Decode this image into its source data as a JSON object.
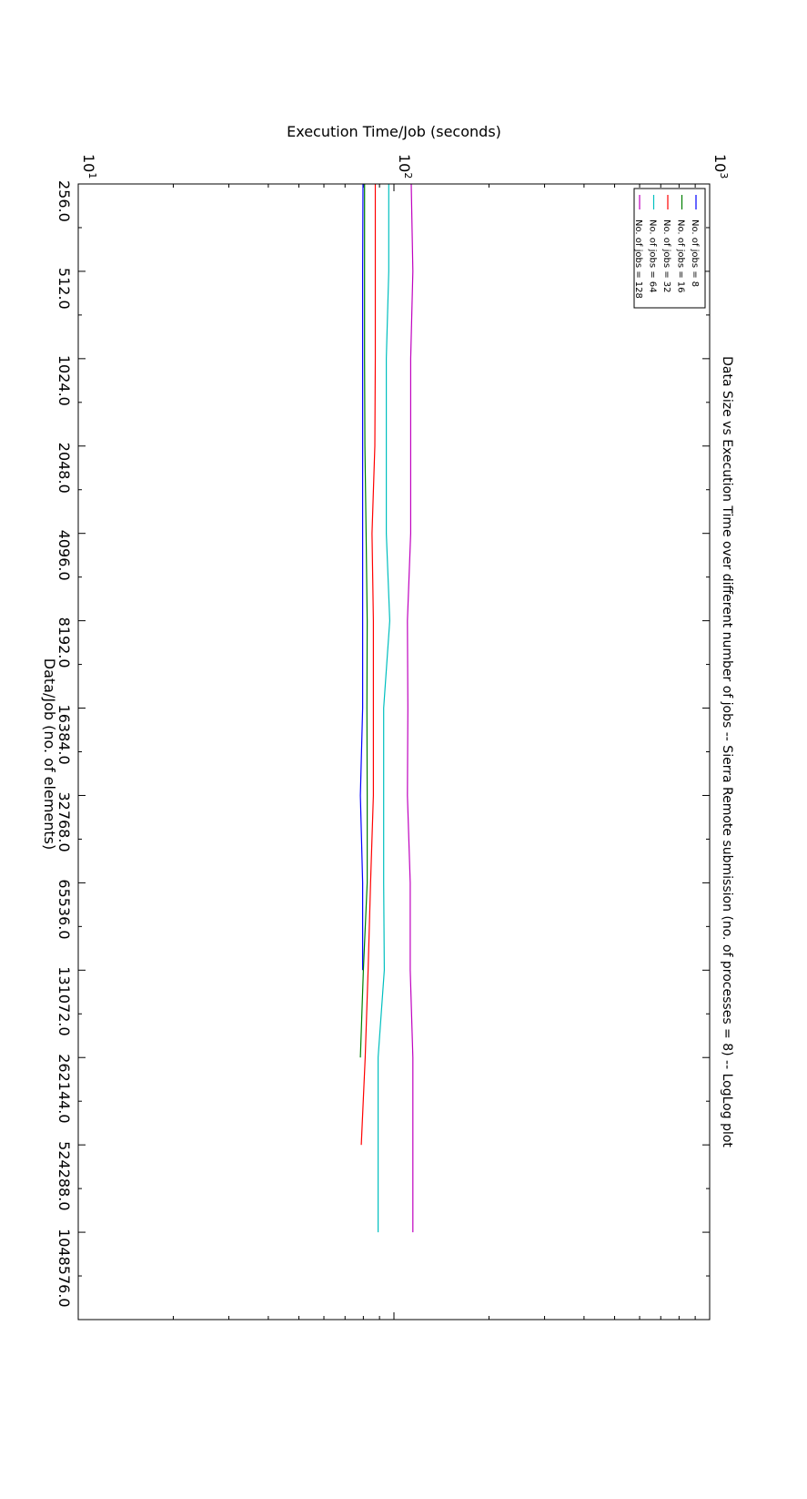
{
  "chart_data": {
    "type": "line",
    "title": "Data Size vs Execution Time over different number of jobs -- Sierra Remote submission (no. of processes = 8) -- LogLog plot",
    "xlabel": "Data/Job (no. of elements)",
    "ylabel": "Execution Time/Job (seconds)",
    "x_scale": "log2",
    "y_scale": "log10",
    "xlim": [
      256,
      2097152
    ],
    "ylim": [
      10,
      1000
    ],
    "x_ticks": [
      256,
      512,
      1024,
      2048,
      4096,
      8192,
      16384,
      32768,
      65536,
      131072,
      262144,
      524288,
      1048576
    ],
    "x_tick_labels": [
      "256.0",
      "512.0",
      "1024.0",
      "2048.0",
      "4096.0",
      "8192.0",
      "16384.0",
      "32768.0",
      "65536.0",
      "131072.0",
      "262144.0",
      "524288.0",
      "1048576.0"
    ],
    "y_ticks": [
      10,
      100,
      1000
    ],
    "y_tick_labels": [
      {
        "base": "10",
        "exp": "1"
      },
      {
        "base": "10",
        "exp": "2"
      },
      {
        "base": "10",
        "exp": "3"
      }
    ],
    "orientation": "rotated 90° clockwise",
    "grid": false,
    "legend_position": "top-left",
    "series": [
      {
        "name": "No. of jobs = 8",
        "color": "#0000ff",
        "x": [
          256,
          512,
          1024,
          2048,
          4096,
          8192,
          16384,
          32768,
          65536,
          131072
        ],
        "y": [
          79.8,
          79.6,
          79.6,
          79.6,
          79.6,
          79.6,
          79.6,
          78.3,
          79.6,
          79.6
        ]
      },
      {
        "name": "No. of jobs = 16",
        "color": "#008000",
        "x": [
          256,
          512,
          1024,
          2048,
          4096,
          8192,
          16384,
          32768,
          65536,
          131072,
          262144
        ],
        "y": [
          80.7,
          80.7,
          80.7,
          80.9,
          81.6,
          82.3,
          82.1,
          82.3,
          82.3,
          80.0,
          78.3
        ]
      },
      {
        "name": "No. of jobs = 32",
        "color": "#ff0000",
        "x": [
          256,
          512,
          1024,
          2048,
          4096,
          8192,
          16384,
          32768,
          65536,
          131072,
          262144,
          524288
        ],
        "y": [
          87.3,
          87.3,
          87.3,
          87.0,
          85.2,
          86.1,
          86.1,
          86.1,
          84.3,
          82.8,
          81.1,
          78.8
        ]
      },
      {
        "name": "No. of jobs = 64",
        "color": "#00bfbf",
        "x": [
          256,
          512,
          1024,
          2048,
          4096,
          8192,
          16384,
          32768,
          65536,
          131072,
          262144,
          524288,
          1048576
        ],
        "y": [
          96.3,
          96.3,
          94.6,
          94.6,
          94.6,
          97.0,
          92.8,
          92.8,
          92.8,
          93.2,
          89.1,
          89.1,
          89.1
        ]
      },
      {
        "name": "No. of jobs = 128",
        "color": "#bf00bf",
        "x": [
          256,
          512,
          1024,
          2048,
          4096,
          8192,
          16384,
          32768,
          65536,
          131072,
          262144,
          524288,
          1048576
        ],
        "y": [
          113.4,
          114.8,
          113.0,
          113.0,
          113.0,
          110.3,
          110.7,
          110.3,
          112.6,
          112.6,
          114.8,
          114.8,
          114.8
        ]
      }
    ]
  }
}
